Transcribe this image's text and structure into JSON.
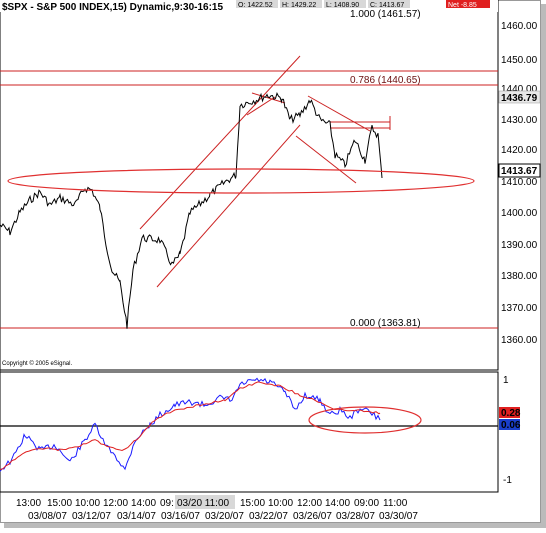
{
  "header": {
    "title": "$SPX - S&P 500 INDEX,15) Dynamic,9:30-16:15",
    "quotes": [
      "O: 1422.52",
      "H: 1429.22",
      "L: 1408.90",
      "C: 1413.67"
    ],
    "net_change": "Net -8.85"
  },
  "copyright": "Copyright © 2005 eSignal.",
  "price_panel": {
    "y_ticks": [
      "1460.00",
      "1450.00",
      "1440.00",
      "1430.00",
      "1420.00",
      "1410.00",
      "1400.00",
      "1390.00",
      "1380.00",
      "1370.00",
      "1360.00"
    ],
    "price_tag_top": "1436.79",
    "price_tag_last": "1413.67",
    "fib_labels": [
      "1.000 (1461.57)",
      "0.786 (1440.65)",
      "0.000 (1363.81)"
    ]
  },
  "indicator_panel": {
    "y_ticks": [
      "1",
      "-1"
    ],
    "value_red": "0.28",
    "value_blue": "0.06"
  },
  "time_axis": {
    "times": [
      "13:00",
      "15:00",
      "10:00",
      "12:00",
      "14:00",
      "09:",
      "03/20 11:00",
      "15:00",
      "10:00",
      "12:00",
      "14:00",
      "09:00",
      "11:00"
    ],
    "dates": [
      "03/08/07",
      "03/12/07",
      "03/14/07",
      "03/16/07",
      "03/20/07",
      "03/22/07",
      "03/26/07",
      "03/28/07",
      "03/30/07"
    ]
  },
  "colors": {
    "price_line": "#000000",
    "fib_line": "#cc2222",
    "indicator_blue": "#1a1aff",
    "indicator_red": "#e02020",
    "net_badge": "#e02020",
    "value_red_bg": "#e02020",
    "value_blue_bg": "#1a3fcc"
  }
}
